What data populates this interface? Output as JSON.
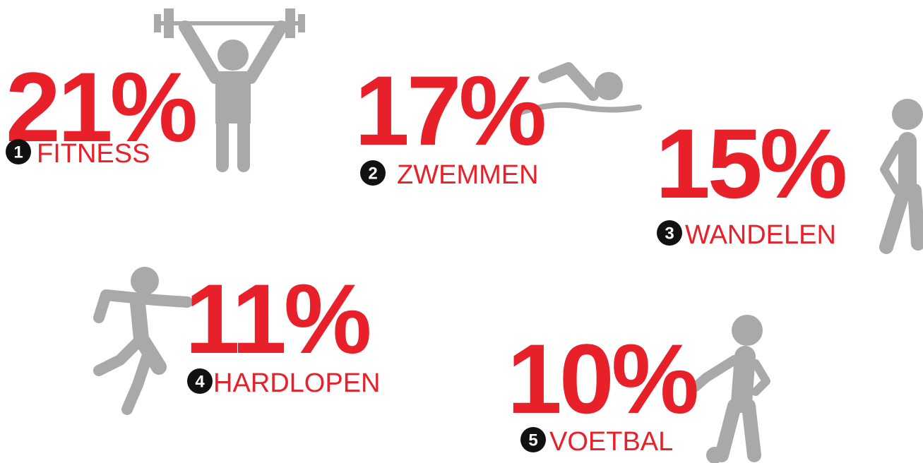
{
  "items": [
    {
      "value": "21%",
      "rank": "1",
      "label": "FITNESS"
    },
    {
      "value": "17%",
      "rank": "2",
      "label": "ZWEMMEN"
    },
    {
      "value": "15%",
      "rank": "3",
      "label": "WANDELEN"
    },
    {
      "value": "11%",
      "rank": "4",
      "label": "HARDLOPEN"
    },
    {
      "value": "10%",
      "rank": "5",
      "label": "VOETBAL"
    }
  ]
}
